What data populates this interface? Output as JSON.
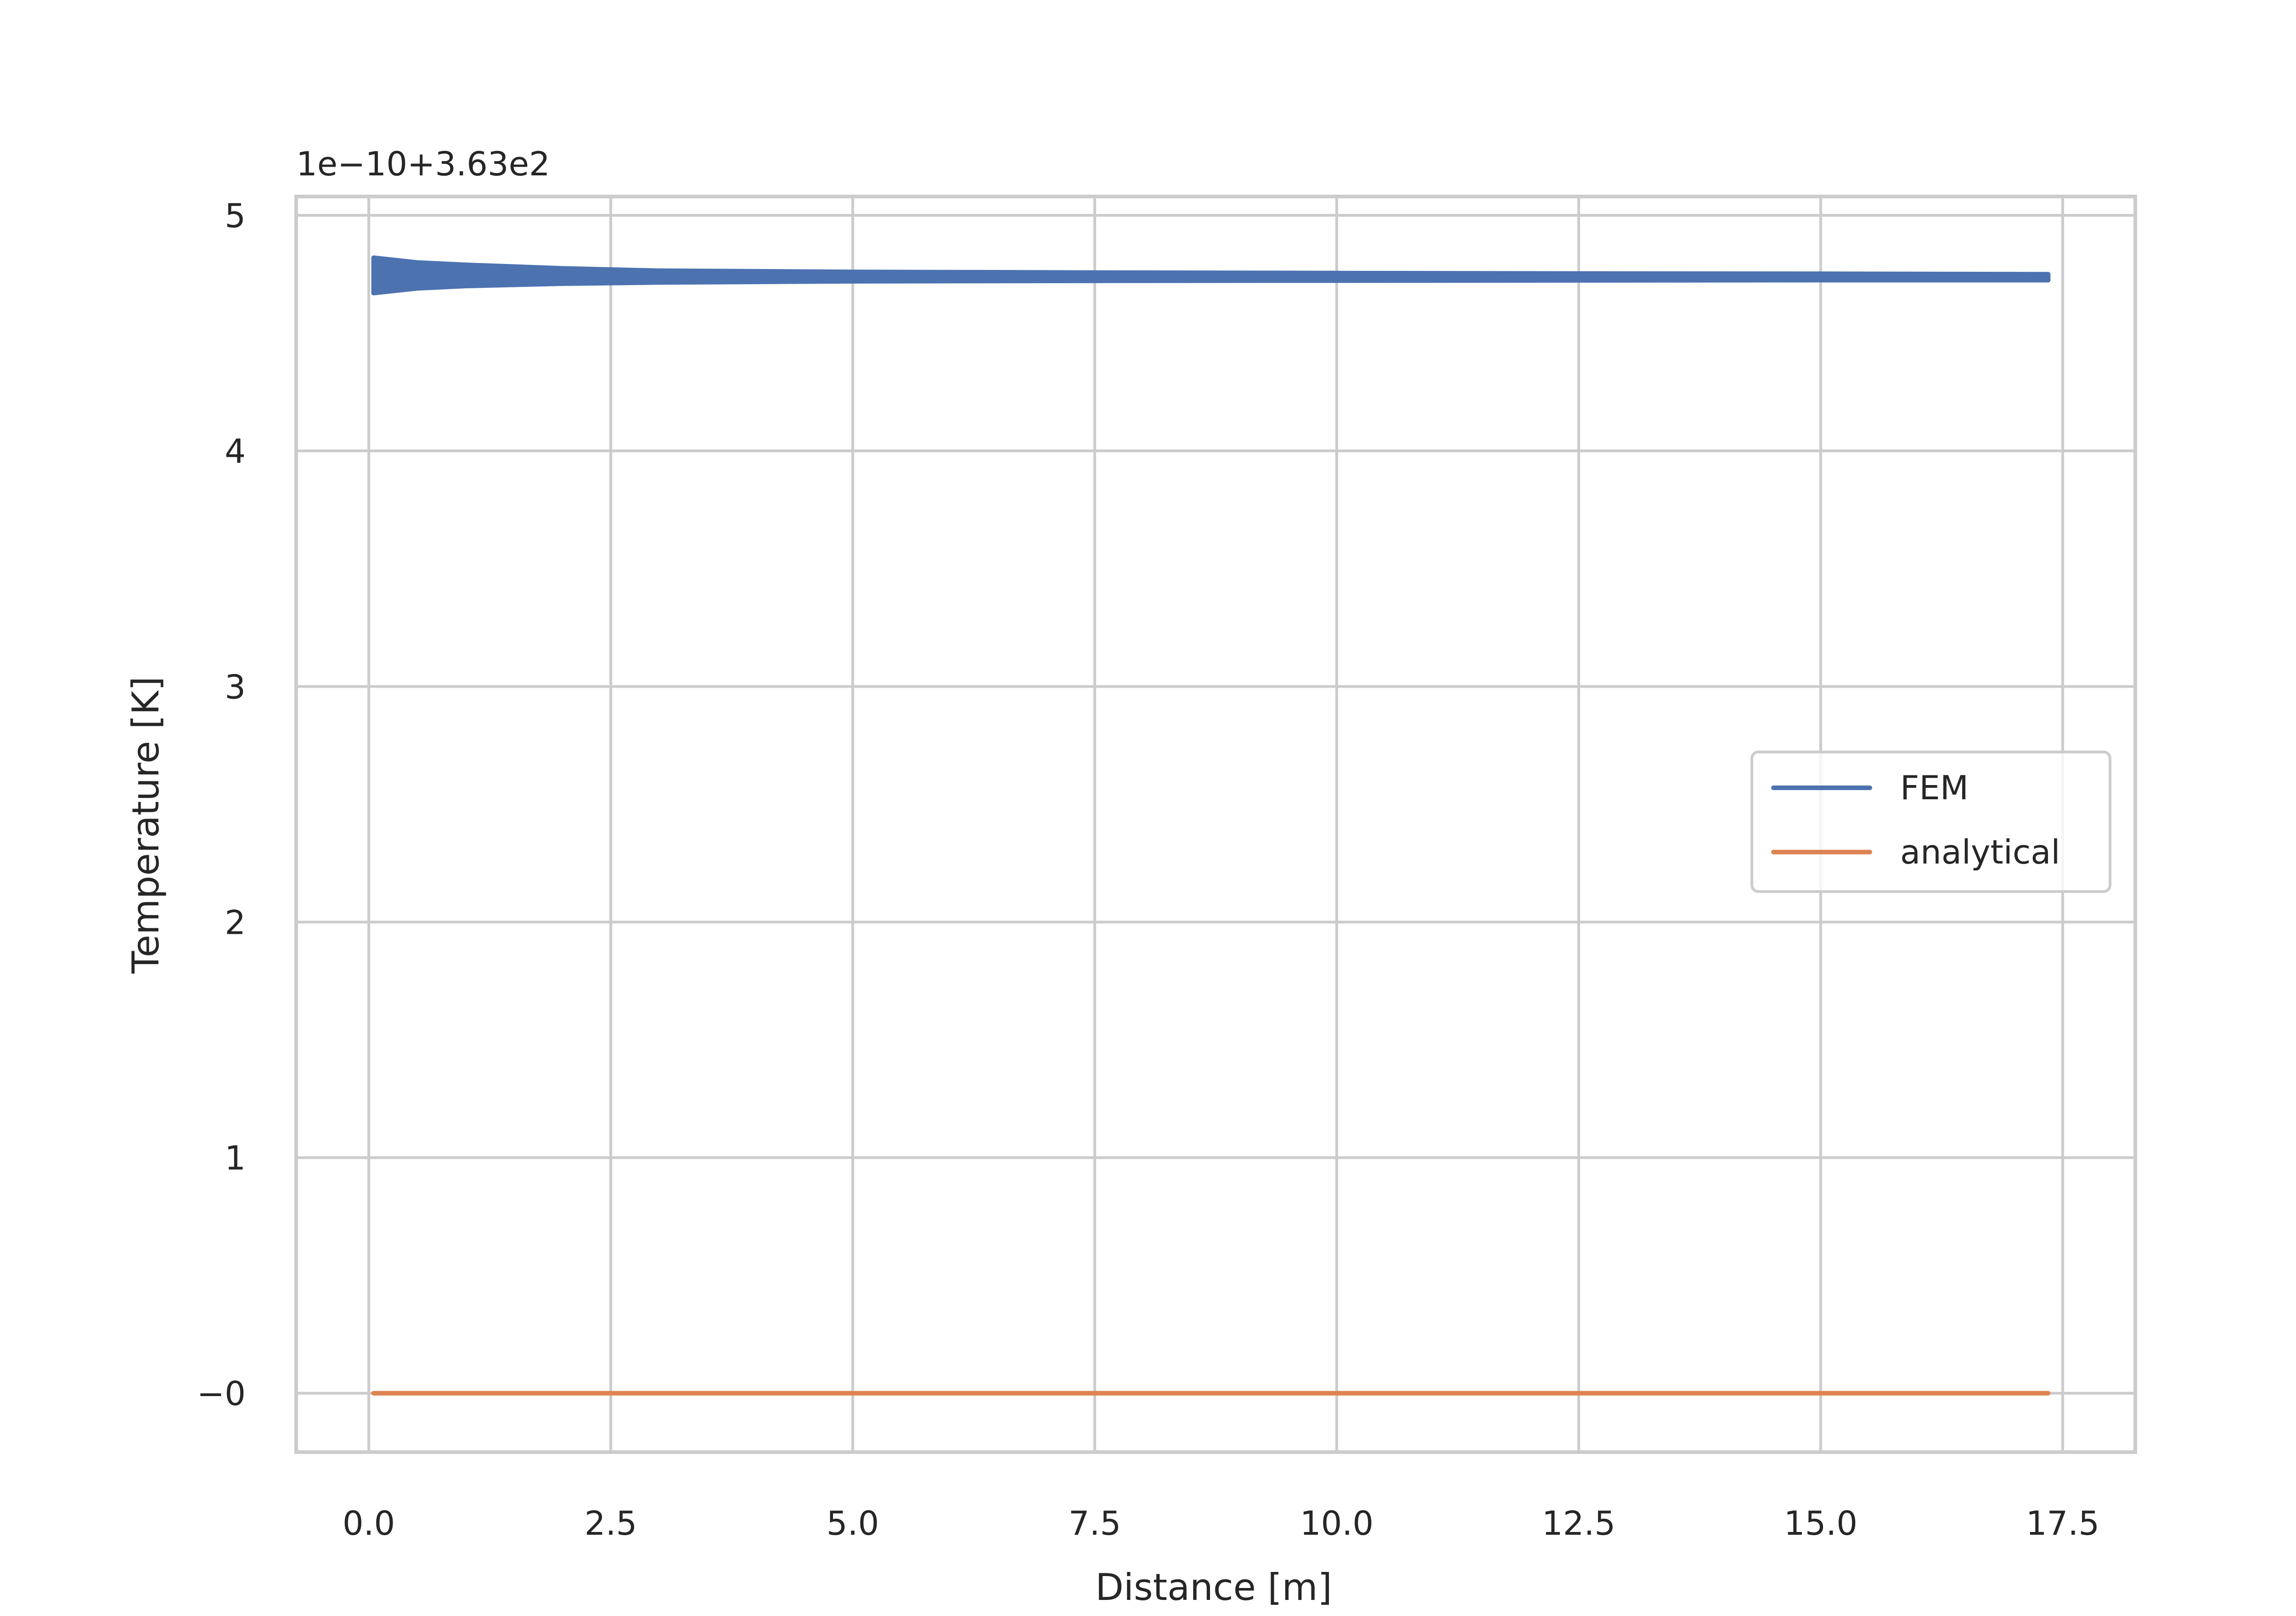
{
  "chart_data": {
    "type": "line",
    "title": "",
    "xlabel": "Distance [m]",
    "ylabel": "Temperature [K]",
    "y_offset_text": "1e−10+3.63e2",
    "xlim": [
      -0.75,
      18.25
    ],
    "ylim": [
      -0.25,
      5.08
    ],
    "x_ticks": [
      {
        "value": 0.0,
        "label": "0.0"
      },
      {
        "value": 2.5,
        "label": "2.5"
      },
      {
        "value": 5.0,
        "label": "5.0"
      },
      {
        "value": 7.5,
        "label": "7.5"
      },
      {
        "value": 10.0,
        "label": "10.0"
      },
      {
        "value": 12.5,
        "label": "12.5"
      },
      {
        "value": 15.0,
        "label": "15.0"
      },
      {
        "value": 17.5,
        "label": "17.5"
      }
    ],
    "y_ticks": [
      {
        "value": 0,
        "label": "−0"
      },
      {
        "value": 1,
        "label": "1"
      },
      {
        "value": 2,
        "label": "2"
      },
      {
        "value": 3,
        "label": "3"
      },
      {
        "value": 4,
        "label": "4"
      },
      {
        "value": 5,
        "label": "5"
      }
    ],
    "grid": true,
    "legend_position": "center-right",
    "series": [
      {
        "name": "FEM",
        "color": "#4c72b0",
        "style": "band",
        "x": [
          0.05,
          0.5,
          1.0,
          2.0,
          3.0,
          5.0,
          7.5,
          10.0,
          12.5,
          15.0,
          17.35
        ],
        "y_upper": [
          4.82,
          4.8,
          4.79,
          4.775,
          4.765,
          4.76,
          4.757,
          4.755,
          4.753,
          4.752,
          4.75
        ],
        "y_lower": [
          4.67,
          4.69,
          4.7,
          4.71,
          4.715,
          4.72,
          4.722,
          4.723,
          4.724,
          4.725,
          4.725
        ]
      },
      {
        "name": "analytical",
        "color": "#dd8452",
        "style": "line",
        "x": [
          0.05,
          17.35
        ],
        "y": [
          0.0,
          0.0
        ]
      }
    ]
  }
}
